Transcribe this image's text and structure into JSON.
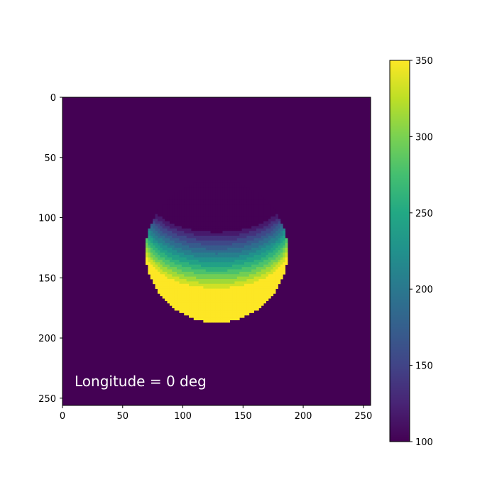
{
  "chart_data": {
    "type": "heatmap",
    "title": "",
    "xlabel": "",
    "ylabel": "",
    "xlim": [
      0,
      256
    ],
    "ylim": [
      256,
      0
    ],
    "x_ticks": [
      "0",
      "50",
      "100",
      "150",
      "200",
      "250"
    ],
    "y_ticks": [
      "0",
      "50",
      "100",
      "150",
      "200",
      "250"
    ],
    "colormap": "viridis",
    "colorbar": {
      "range": [
        100,
        350
      ],
      "ticks": [
        "100",
        "150",
        "200",
        "250",
        "300",
        "350"
      ]
    },
    "background_value": 100,
    "disk": {
      "center_x": 128,
      "center_y": 128,
      "radius": 59,
      "min_value": 100,
      "max_value": 350,
      "bright_side": "bottom"
    },
    "annotation": "Longitude = 0 deg"
  }
}
